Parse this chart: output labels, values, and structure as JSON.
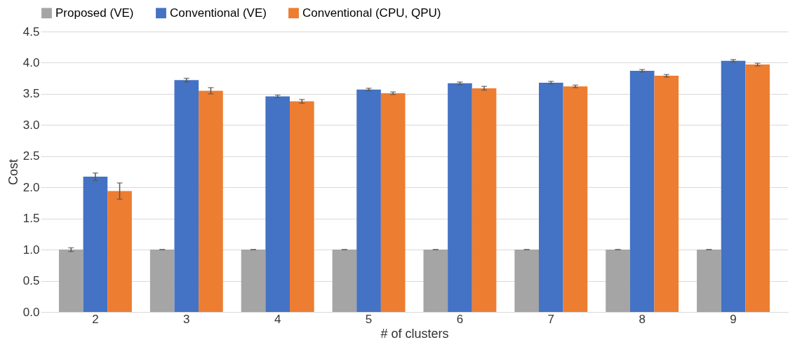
{
  "chart_data": {
    "type": "bar",
    "xlabel": "# of clusters",
    "ylabel": "Cost",
    "categories": [
      "2",
      "3",
      "4",
      "5",
      "6",
      "7",
      "8",
      "9"
    ],
    "series": [
      {
        "name": "Proposed (VE)",
        "color": "#a5a5a5",
        "values": [
          1.0,
          1.0,
          1.0,
          1.0,
          1.0,
          1.0,
          1.0,
          1.0
        ],
        "errors": [
          0.03,
          0,
          0,
          0,
          0,
          0,
          0,
          0
        ]
      },
      {
        "name": "Conventional (VE)",
        "color": "#4472c4",
        "values": [
          2.17,
          3.72,
          3.46,
          3.57,
          3.67,
          3.68,
          3.87,
          4.03
        ],
        "errors": [
          0.06,
          0.03,
          0.02,
          0.02,
          0.02,
          0.02,
          0.02,
          0.02
        ]
      },
      {
        "name": "Conventional (CPU, QPU)",
        "color": "#ed7d31",
        "values": [
          1.94,
          3.55,
          3.38,
          3.51,
          3.59,
          3.62,
          3.79,
          3.97
        ],
        "errors": [
          0.13,
          0.05,
          0.03,
          0.02,
          0.03,
          0.02,
          0.02,
          0.02
        ]
      }
    ],
    "ylim": [
      0,
      4.5
    ],
    "yticks": [
      {
        "value": 0,
        "label": "0.0"
      },
      0.5,
      {
        "value": 1,
        "label": "1.0"
      },
      1.5,
      {
        "value": 2,
        "label": "2.0"
      },
      2.5,
      {
        "value": 3,
        "label": "3.0"
      },
      3.5,
      {
        "value": 4,
        "label": "4.0"
      },
      4.5
    ],
    "grid": "y",
    "legend": "top"
  }
}
